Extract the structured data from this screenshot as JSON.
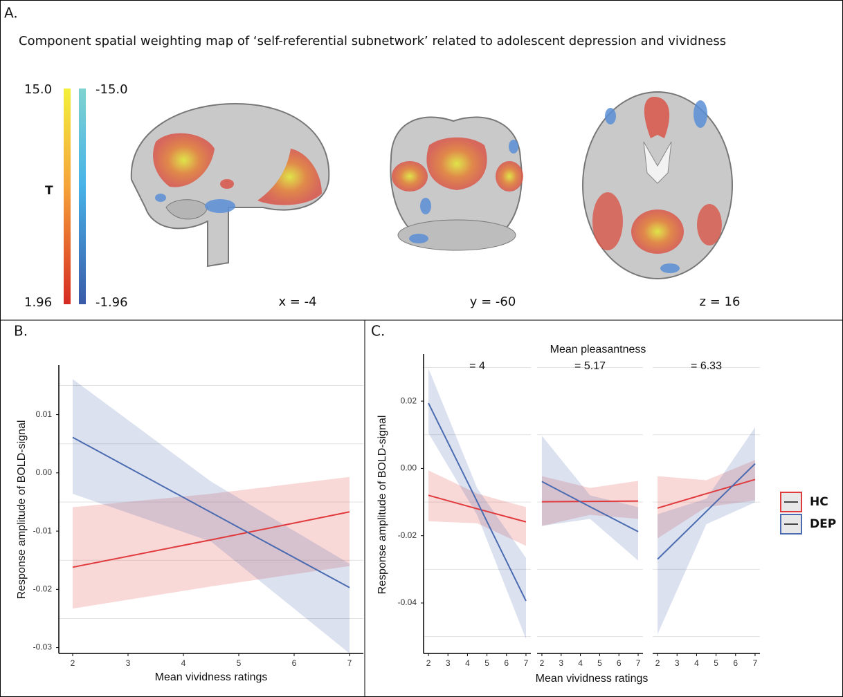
{
  "panel_a": {
    "label": "A.",
    "title": "Component spatial weighting map of ‘self-referential subnetwork’ related to adolescent depression and vividness",
    "colorbar": {
      "pos_max": "15.0",
      "neg_max": "-15.0",
      "pos_min": "1.96",
      "neg_min": "-1.96",
      "label": "T"
    },
    "slices": [
      "x = -4",
      "y = -60",
      "z = 16"
    ]
  },
  "chart_data": [
    {
      "type": "line",
      "panel_label": "B.",
      "x_label": "Mean vividness ratings",
      "y_label": "Response amplitude of BOLD-signal",
      "xlim": [
        1.75,
        7.25
      ],
      "ylim": [
        -0.031,
        0.0185
      ],
      "xticks": [
        2,
        3,
        4,
        5,
        6,
        7
      ],
      "yticks": [
        0.01,
        {
          "value": 0,
          "label": "0.00"
        },
        -0.01,
        -0.02,
        -0.03
      ],
      "minor_gridlines": [
        0.015,
        0.005,
        -0.005,
        -0.015,
        -0.025
      ],
      "x": [
        2,
        4.5,
        7
      ],
      "series": [
        {
          "color": "#e03a3c",
          "values": [
            -0.0162,
            -0.0115,
            -0.0067
          ],
          "lower": [
            -0.0233,
            -0.0195,
            -0.016
          ],
          "upper": [
            -0.0059,
            -0.0036,
            -0.0007
          ]
        },
        {
          "color": "#4a6bb0",
          "values": [
            0.0061,
            -0.0068,
            -0.0197
          ],
          "lower": [
            -0.0036,
            -0.0118,
            -0.031
          ],
          "upper": [
            0.0161,
            -0.0015,
            -0.0156
          ]
        }
      ]
    },
    {
      "type": "line",
      "panel_label": "C.",
      "title": "Mean pleasantness",
      "x_label": "Mean vividness ratings",
      "y_label": "Response amplitude of BOLD-signal",
      "xlim": [
        1.75,
        7.25
      ],
      "ylim": [
        -0.055,
        0.034
      ],
      "xticks": [
        2,
        3,
        4,
        5,
        6,
        7
      ],
      "yticks": [
        0.02,
        {
          "value": 0,
          "label": "0.00"
        },
        -0.02,
        -0.04
      ],
      "minor_gridlines": [
        0.03,
        0.01,
        -0.01,
        -0.03,
        -0.05
      ],
      "legend": "right",
      "series": [
        {
          "name": "HC",
          "color": "#e03a3c"
        },
        {
          "name": "DEP",
          "color": "#4a6bb0"
        }
      ],
      "x": [
        2,
        4.5,
        7
      ],
      "facets": [
        {
          "title": "= 4",
          "series": [
            {
              "values": [
                -0.008,
                -0.012,
                -0.0159
              ],
              "lower": [
                -0.0157,
                -0.0163,
                -0.023
              ],
              "upper": [
                -0.0006,
                -0.0075,
                -0.0115
              ]
            },
            {
              "values": [
                0.0194,
                -0.0099,
                -0.0394
              ],
              "lower": [
                0.0105,
                -0.0139,
                -0.0507
              ],
              "upper": [
                0.0297,
                -0.0059,
                -0.0266
              ]
            }
          ]
        },
        {
          "title": "= 5.17",
          "series": [
            {
              "values": [
                -0.0099,
                -0.0098,
                -0.0097
              ],
              "lower": [
                -0.0171,
                -0.0138,
                -0.015
              ],
              "upper": [
                -0.0023,
                -0.0058,
                -0.0037
              ]
            },
            {
              "values": [
                -0.0039,
                -0.0114,
                -0.0188
              ],
              "lower": [
                -0.0171,
                -0.015,
                -0.0274
              ],
              "upper": [
                0.0097,
                -0.008,
                -0.0115
              ]
            }
          ]
        },
        {
          "title": "= 6.33",
          "series": [
            {
              "values": [
                -0.0118,
                -0.0075,
                -0.0033
              ],
              "lower": [
                -0.0208,
                -0.0115,
                -0.0095
              ],
              "upper": [
                -0.0023,
                -0.0035,
                0.0025
              ]
            },
            {
              "values": [
                -0.027,
                -0.0128,
                0.0014
              ],
              "lower": [
                -0.0493,
                -0.0166,
                -0.0101
              ],
              "upper": [
                -0.0136,
                -0.009,
                0.0122
              ]
            }
          ]
        }
      ]
    }
  ]
}
